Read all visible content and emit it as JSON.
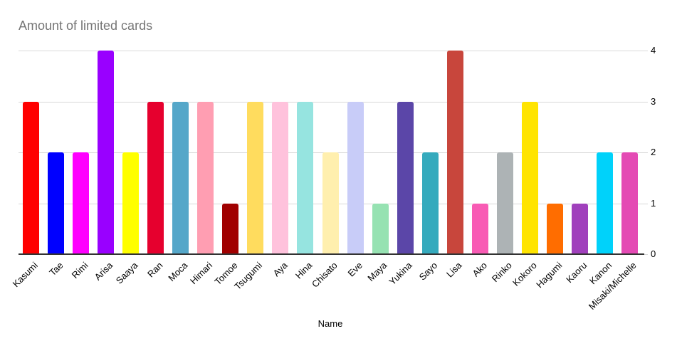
{
  "title": "Amount of limited cards",
  "chart_data": {
    "type": "bar",
    "title": "Amount of limited cards",
    "xlabel": "Name",
    "ylabel": "",
    "ylim": [
      0,
      4
    ],
    "yticks": [
      0,
      1,
      2,
      3,
      4
    ],
    "y_axis_side": "right",
    "grid": true,
    "legend_position": "none",
    "categories": [
      "Kasumi",
      "Tae",
      "Rimi",
      "Arisa",
      "Saaya",
      "Ran",
      "Moca",
      "Himari",
      "Tomoe",
      "Tsugumi",
      "Aya",
      "Hina",
      "Chisato",
      "Eve",
      "Maya",
      "Yukina",
      "Sayo",
      "Lisa",
      "Ako",
      "Rinko",
      "Kokoro",
      "Hagumi",
      "Kaoru",
      "Kanon",
      "Misaki/Michelle"
    ],
    "values": [
      3,
      2,
      2,
      4,
      2,
      3,
      3,
      3,
      1,
      3,
      3,
      3,
      2,
      3,
      1,
      3,
      2,
      4,
      1,
      2,
      3,
      1,
      1,
      2,
      2
    ],
    "bar_colors": [
      "#ff0000",
      "#0000ff",
      "#ff00ff",
      "#9900ff",
      "#ffff00",
      "#e6002e",
      "#55a7c9",
      "#ff9eb2",
      "#a00000",
      "#ffdc5e",
      "#ffc2dc",
      "#96e4e0",
      "#ffefae",
      "#c8ccf8",
      "#96e2b2",
      "#5b46a8",
      "#35aabd",
      "#c8463c",
      "#f85bb4",
      "#adb3b5",
      "#ffe400",
      "#ff6d00",
      "#a040bc",
      "#00d2fa",
      "#e44ab4"
    ]
  },
  "colors": {
    "title_text": "#757575",
    "axis_line": "#333333",
    "gridline": "#d9d9d9",
    "tick_text": "#000000"
  }
}
